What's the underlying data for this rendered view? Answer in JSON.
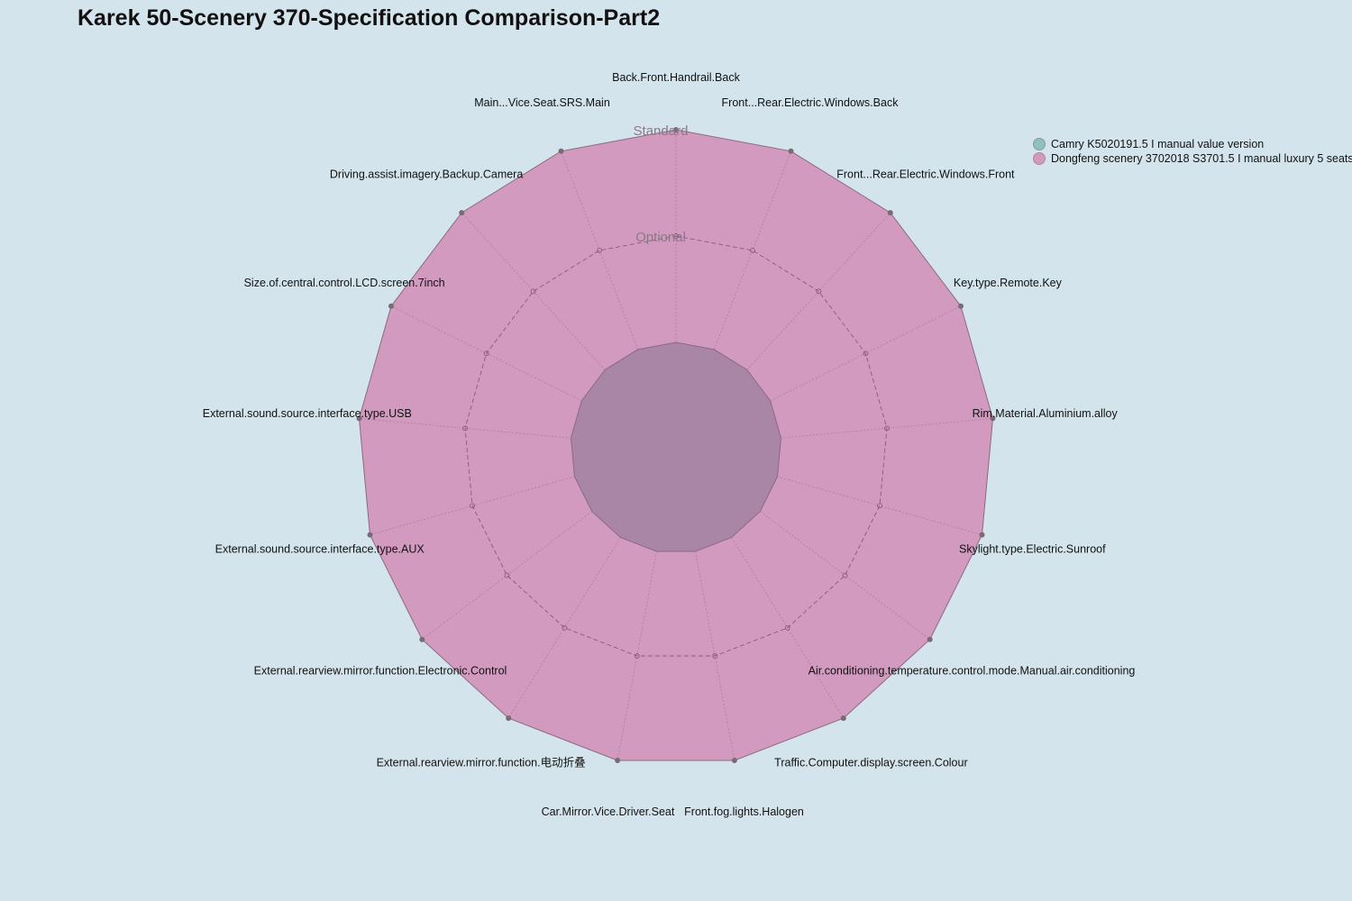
{
  "chart_data": {
    "type": "radar",
    "title": "Karek 50-Scenery 370-Specification Comparison-Part2",
    "levels": [
      "",
      "Optional",
      "Standard"
    ],
    "axes": [
      "Back.Front.Handrail.Back",
      "Front...Rear.Electric.Windows.Back",
      "Front...Rear.Electric.Windows.Front",
      "Key.type.Remote.Key",
      "Rim.Material.Aluminium.alloy",
      "Skylight.type.Electric.Sunroof",
      "Air.conditioning.temperature.control.mode.Manual.air.conditioning",
      "Traffic.Computer.display.screen.Colour",
      "Front.fog.lights.Halogen",
      "Car.Mirror.Vice.Driver.Seat",
      "External.rearview.mirror.function.电动折叠",
      "External.rearview.mirror.function.Electronic.Control",
      "External.sound.source.interface.type.AUX",
      "External.sound.source.interface.type.USB",
      "Size.of.central.control.LCD.screen.7inch",
      "Driving.assist.imagery.Backup.Camera",
      "Main...Vice.Seat.SRS.Main"
    ],
    "series": [
      {
        "name": "Camry K5020191.5 I manual value version",
        "color": "#8fbfbf",
        "values": [
          0,
          0,
          0,
          0,
          0,
          0,
          0,
          0,
          0,
          0,
          0,
          0,
          0,
          0,
          0,
          0,
          0
        ]
      },
      {
        "name": "Dongfeng scenery 3702018 S3701.5 I manual luxury 5 seats",
        "color": "#d39ac0",
        "values": [
          2,
          2,
          2,
          2,
          2,
          2,
          2,
          2,
          2,
          2,
          2,
          2,
          2,
          2,
          2,
          2,
          2
        ]
      }
    ],
    "range": [
      0,
      2
    ],
    "legend_position": "top-right"
  }
}
